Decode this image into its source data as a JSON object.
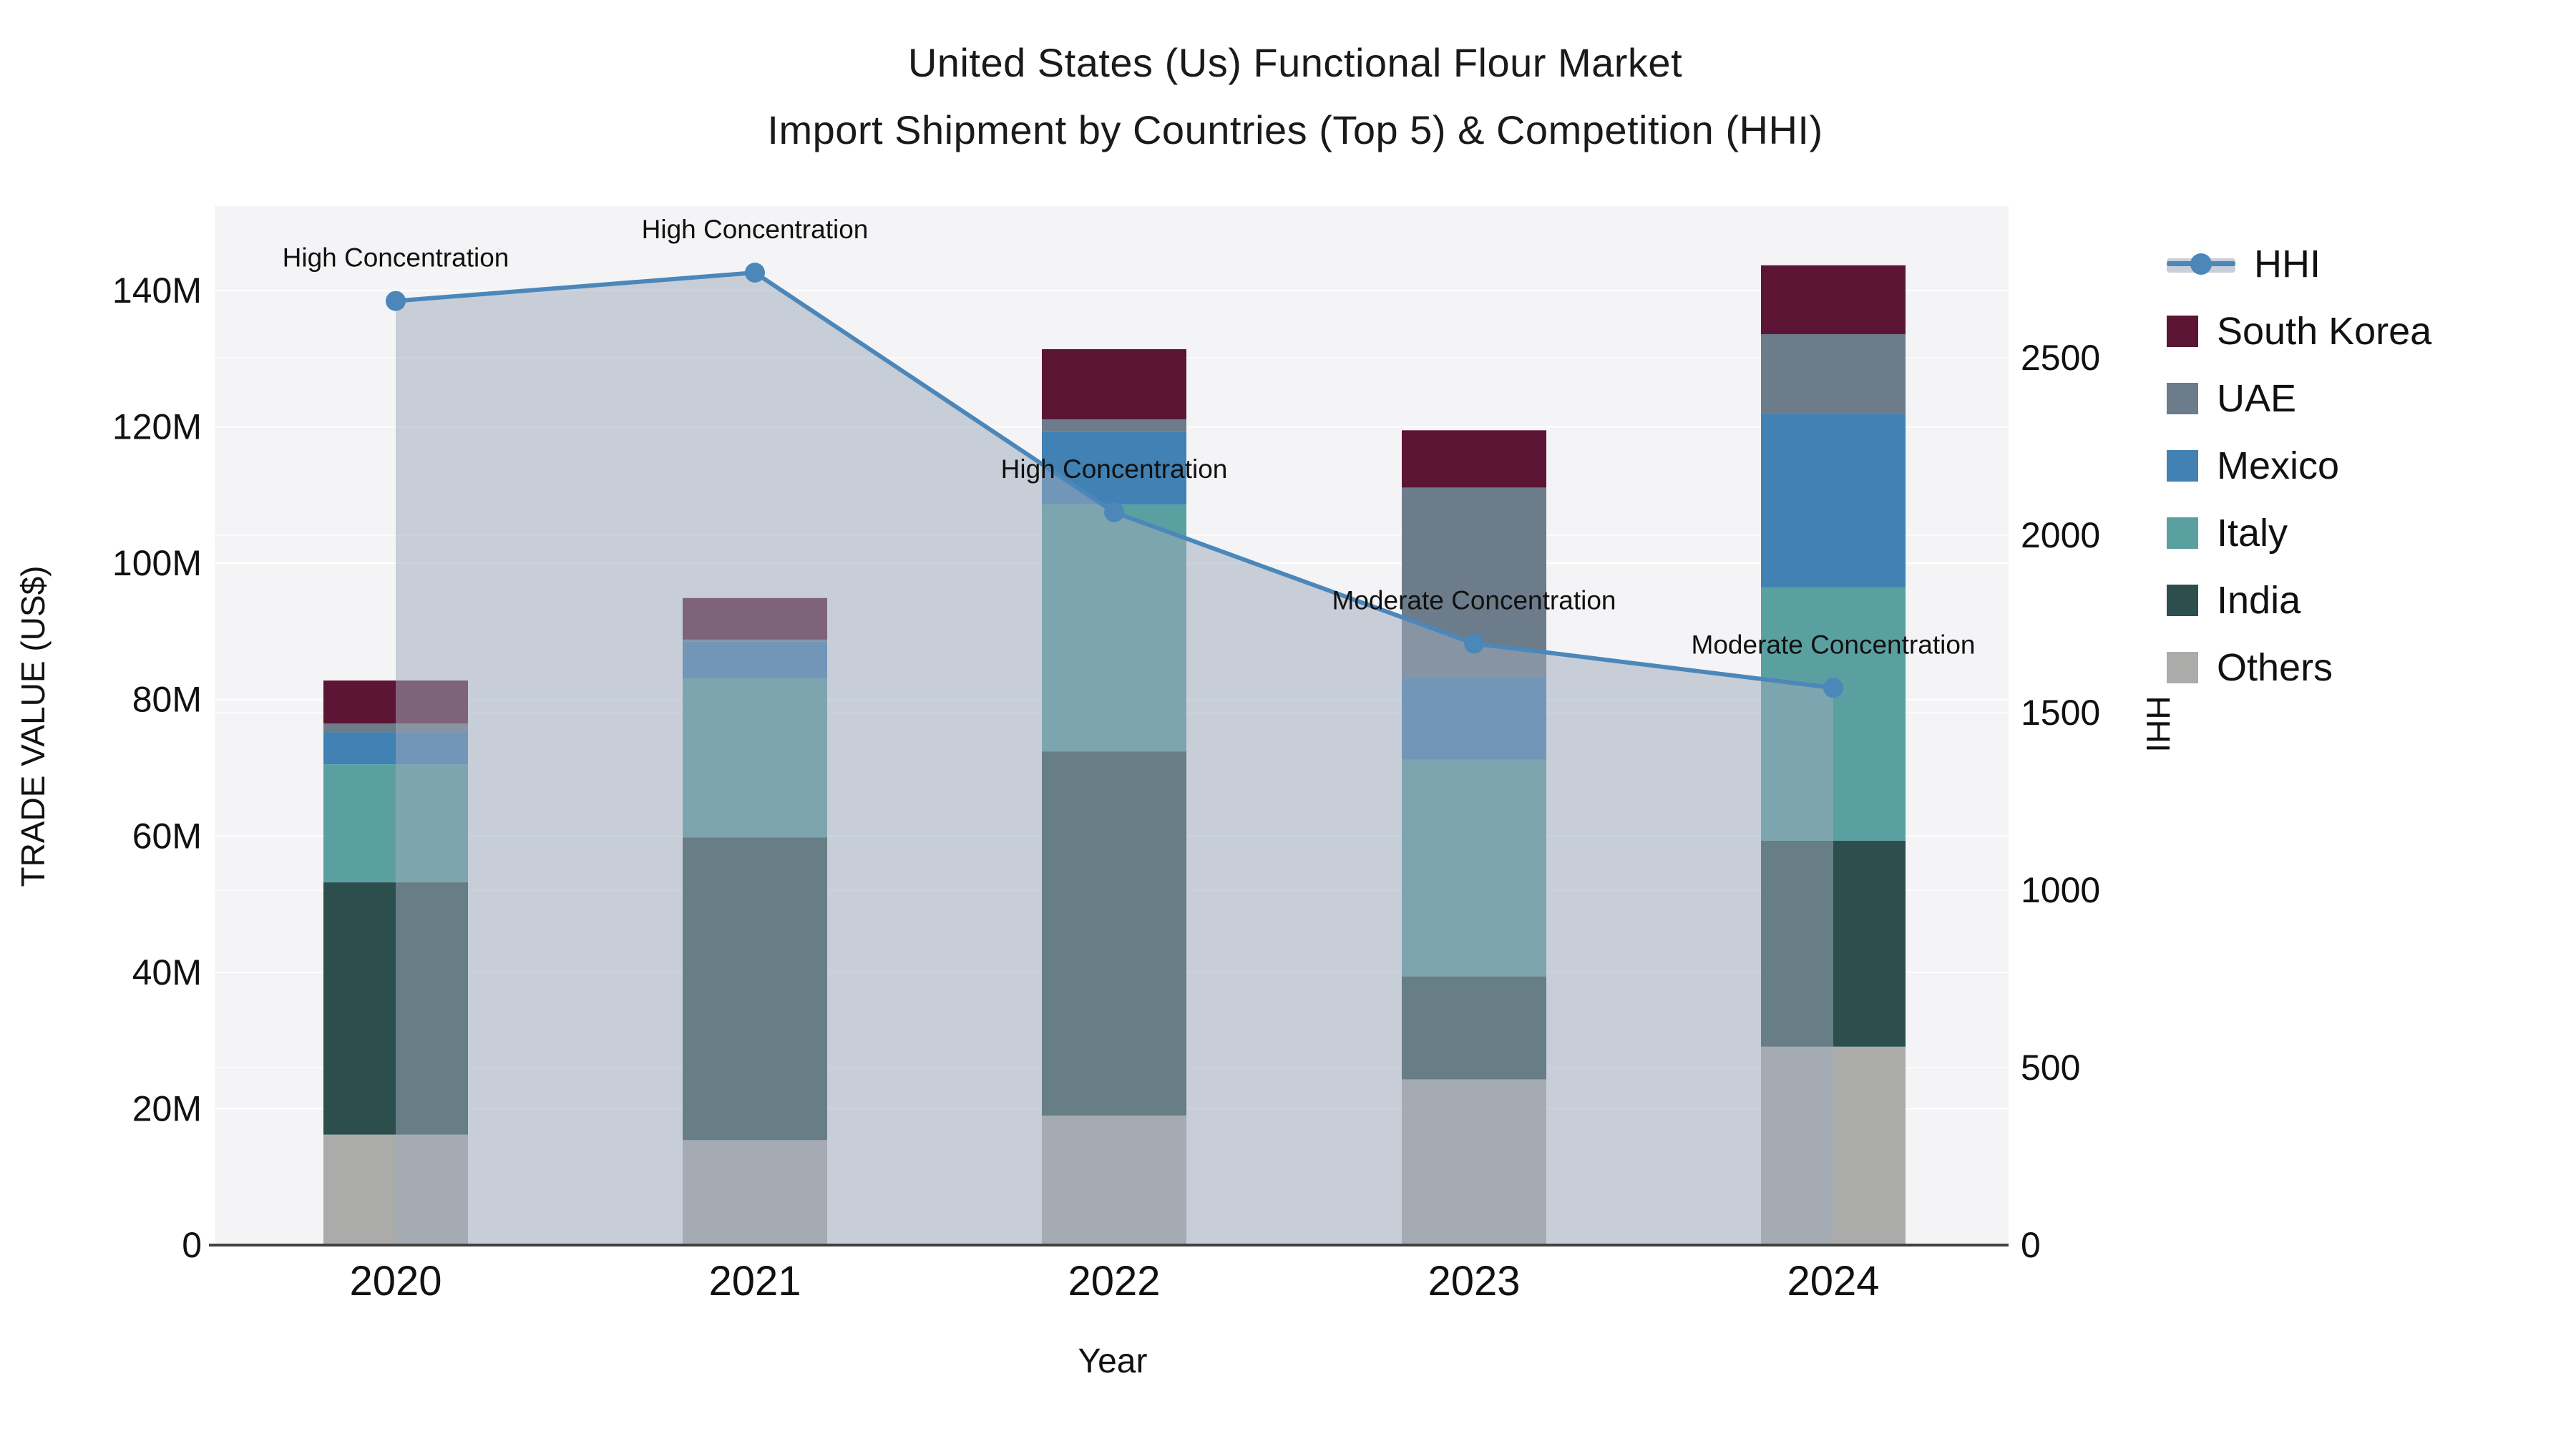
{
  "title": {
    "line1": "United States (Us) Functional Flour Market",
    "line2": "Import Shipment by Countries (Top 5) & Competition (HHI)"
  },
  "chart_data": {
    "type": "bar+line",
    "categories": [
      "2020",
      "2021",
      "2022",
      "2023",
      "2024"
    ],
    "xlabel": "Year",
    "ylabel_left": "TRADE VALUE (US$)",
    "ylabel_right": "HHI",
    "y_left": {
      "ticks": [
        0,
        20,
        40,
        60,
        80,
        100,
        120,
        140
      ],
      "tick_labels": [
        "0",
        "20M",
        "40M",
        "60M",
        "80M",
        "100M",
        "120M",
        "140M"
      ],
      "max": 140,
      "unit": "M US$"
    },
    "y_right": {
      "ticks": [
        0,
        500,
        1000,
        1500,
        2000,
        2500
      ],
      "tick_labels": [
        "0",
        "500",
        "1000",
        "1500",
        "2000",
        "2500"
      ],
      "max": 2500
    },
    "series": [
      {
        "name": "Others",
        "color": "#abacaa",
        "values": [
          16.2,
          15.4,
          19.0,
          24.3,
          29.1
        ]
      },
      {
        "name": "India",
        "color": "#2c4f4d",
        "values": [
          37.0,
          44.4,
          53.4,
          15.1,
          30.2
        ]
      },
      {
        "name": "Italy",
        "color": "#5aa0a1",
        "values": [
          17.3,
          23.3,
          36.2,
          31.8,
          37.2
        ]
      },
      {
        "name": "Mexico",
        "color": "#4181b3",
        "values": [
          4.7,
          5.4,
          10.7,
          12.0,
          25.4
        ]
      },
      {
        "name": "UAE",
        "color": "#6d7c8a",
        "values": [
          1.3,
          0.3,
          1.8,
          27.9,
          11.7
        ]
      },
      {
        "name": "South Korea",
        "color": "#5c1535",
        "values": [
          6.3,
          6.1,
          10.3,
          8.4,
          10.1
        ]
      }
    ],
    "bar_totals": [
      82.8,
      94.9,
      131.4,
      119.5,
      143.7
    ],
    "hhi": {
      "name": "HHI",
      "color": "#4c87ba",
      "area_color": "rgba(158,170,188,0.52)",
      "values": [
        2660,
        2740,
        2065,
        1695,
        1570
      ],
      "annotations": [
        "High Concentration",
        "High Concentration",
        "High Concentration",
        "Moderate Concentration",
        "Moderate Concentration"
      ]
    },
    "legend_order": [
      "HHI",
      "South Korea",
      "UAE",
      "Mexico",
      "Italy",
      "India",
      "Others"
    ],
    "style": {
      "plot_bg": "#f4f4f6",
      "grid_color": "#ffffff",
      "axis_line_color": "#404040",
      "text_color": "#111111"
    }
  }
}
